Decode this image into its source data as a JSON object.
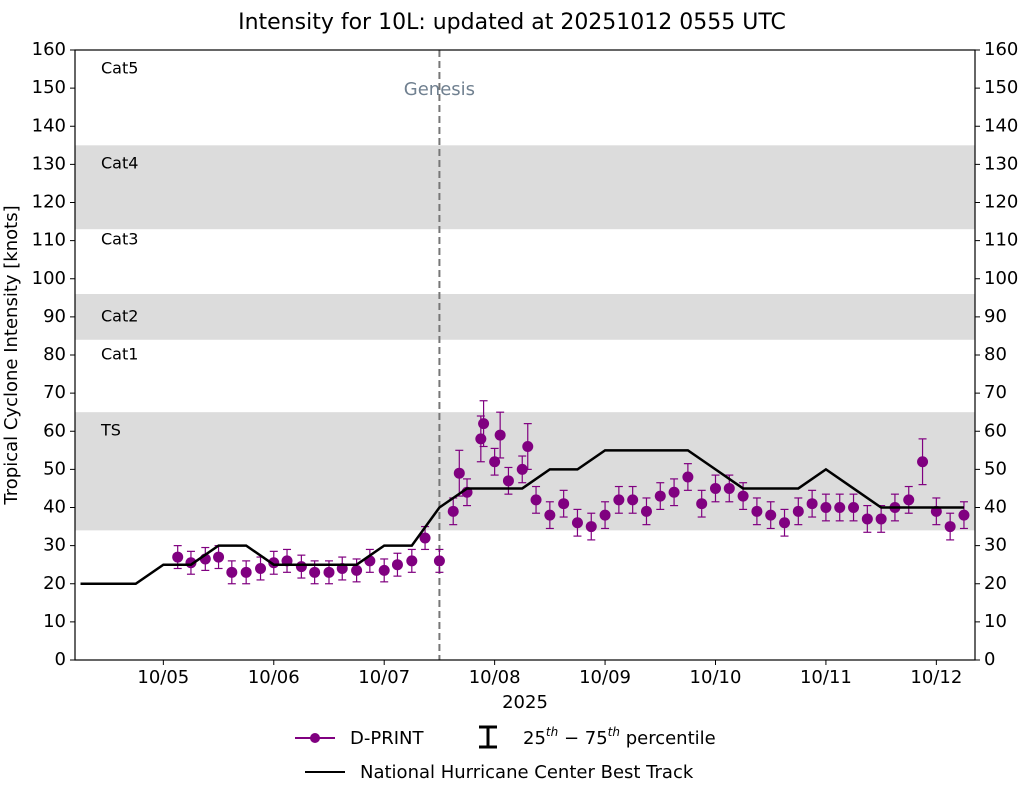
{
  "chart_data": {
    "type": "scatter",
    "title": "Intensity for 10L: updated at 20251012 0555 UTC",
    "ylabel": "Tropical Cyclone Intensity [knots]",
    "xlabel": "2025",
    "xlim": [
      4.2,
      12.35
    ],
    "xticks": [
      {
        "value": 5,
        "label": "10/05"
      },
      {
        "value": 6,
        "label": "10/06"
      },
      {
        "value": 7,
        "label": "10/07"
      },
      {
        "value": 8,
        "label": "10/08"
      },
      {
        "value": 9,
        "label": "10/09"
      },
      {
        "value": 10,
        "label": "10/10"
      },
      {
        "value": 11,
        "label": "10/11"
      },
      {
        "value": 12,
        "label": "10/12"
      }
    ],
    "ylim": [
      0,
      160
    ],
    "yticks": [
      0,
      10,
      20,
      30,
      40,
      50,
      60,
      70,
      80,
      90,
      100,
      110,
      120,
      130,
      140,
      150,
      160
    ],
    "bands": [
      [
        34,
        65
      ],
      [
        84,
        96
      ],
      [
        113,
        135
      ]
    ],
    "band_color": "#dcdcdc",
    "category_labels": [
      "Cat5",
      "Cat4",
      "Cat3",
      "Cat2",
      "Cat1",
      "TS"
    ],
    "genesis": {
      "label": "Genesis",
      "x": 7.5
    },
    "percentile_label": [
      "25",
      "th",
      " − 75",
      "th",
      " percentile"
    ],
    "series": [
      {
        "name": "D-PRINT",
        "color": "#800080",
        "x": [
          5.13,
          5.25,
          5.38,
          5.5,
          5.62,
          5.75,
          5.88,
          6.0,
          6.12,
          6.25,
          6.37,
          6.5,
          6.62,
          6.75,
          6.87,
          7.0,
          7.12,
          7.25,
          7.37,
          7.5,
          7.625,
          7.68,
          7.75,
          7.875,
          7.9,
          8.0,
          8.05,
          8.125,
          8.25,
          8.3,
          8.375,
          8.5,
          8.625,
          8.75,
          8.875,
          9.0,
          9.125,
          9.25,
          9.375,
          9.5,
          9.625,
          9.75,
          9.875,
          10.0,
          10.125,
          10.25,
          10.375,
          10.5,
          10.625,
          10.75,
          10.875,
          11.0,
          11.125,
          11.25,
          11.375,
          11.5,
          11.625,
          11.75,
          11.875,
          12.0,
          12.125,
          12.25
        ],
        "values": [
          27,
          25.5,
          26.5,
          27,
          23,
          23,
          24,
          25.5,
          26,
          24.5,
          23,
          23,
          24,
          23.5,
          26,
          23.5,
          25,
          26,
          32,
          26,
          39,
          49,
          44,
          58,
          62,
          52,
          59,
          47,
          50,
          56,
          42,
          38,
          41,
          36,
          35,
          38,
          42,
          42,
          39,
          43,
          44,
          48,
          41,
          45,
          45,
          43,
          39,
          38,
          36,
          39,
          41,
          40,
          40,
          40,
          37,
          37,
          40,
          42,
          52,
          39,
          35,
          38
        ],
        "lower": [
          24,
          22.5,
          23.5,
          24,
          20,
          20,
          21,
          22.5,
          23,
          21.5,
          20,
          20,
          21,
          20.5,
          23,
          20.5,
          22,
          23,
          29,
          23,
          35.5,
          43,
          40.5,
          52,
          56,
          48.5,
          53,
          43.5,
          46.5,
          50,
          38.5,
          34.5,
          37.5,
          32.5,
          31.5,
          34.5,
          38.5,
          38.5,
          35.5,
          39.5,
          40.5,
          44.5,
          37.5,
          41.5,
          41.5,
          39.5,
          35.5,
          34.5,
          32.5,
          35.5,
          37.5,
          36.5,
          36.5,
          36.5,
          33.5,
          33.5,
          36.5,
          38.5,
          46,
          35.5,
          31.5,
          34.5
        ],
        "upper": [
          30,
          28.5,
          29.5,
          30,
          26,
          26,
          27,
          28.5,
          29,
          27.5,
          26,
          26,
          27,
          26.5,
          29,
          26.5,
          28,
          29,
          35,
          29,
          42.5,
          55,
          47.5,
          64,
          68,
          55.5,
          65,
          50.5,
          53.5,
          62,
          45.5,
          41.5,
          44.5,
          39.5,
          38.5,
          41.5,
          45.5,
          45.5,
          42.5,
          46.5,
          47.5,
          51.5,
          44.5,
          48.5,
          48.5,
          46.5,
          42.5,
          41.5,
          39.5,
          42.5,
          44.5,
          43.5,
          43.5,
          43.5,
          40.5,
          40.5,
          43.5,
          45.5,
          58,
          42.5,
          38.5,
          41.5
        ]
      },
      {
        "name": "National Hurricane Center Best Track",
        "color": "#000000",
        "x": [
          4.25,
          4.75,
          5.0,
          5.25,
          5.5,
          5.75,
          6.0,
          6.75,
          7.0,
          7.25,
          7.5,
          7.75,
          8.25,
          8.5,
          8.75,
          9.0,
          9.75,
          10.0,
          10.25,
          10.75,
          11.0,
          11.25,
          11.5,
          12.25
        ],
        "values": [
          20,
          20,
          25,
          25,
          30,
          30,
          25,
          25,
          30,
          30,
          40,
          45,
          45,
          50,
          50,
          55,
          55,
          50,
          45,
          45,
          50,
          45,
          40,
          40
        ]
      }
    ]
  }
}
